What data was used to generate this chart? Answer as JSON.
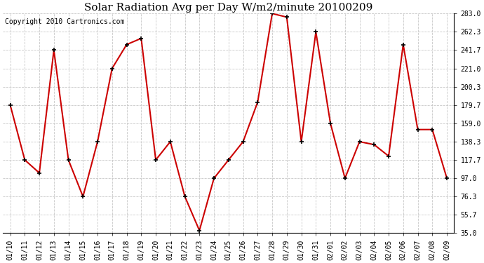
{
  "title": "Solar Radiation Avg per Day W/m2/minute 20100209",
  "copyright": "Copyright 2010 Cartronics.com",
  "x_labels": [
    "01/10",
    "01/11",
    "01/12",
    "01/13",
    "01/14",
    "01/15",
    "01/16",
    "01/17",
    "01/18",
    "01/19",
    "01/20",
    "01/21",
    "01/22",
    "01/23",
    "01/24",
    "01/25",
    "01/26",
    "01/27",
    "01/28",
    "01/29",
    "01/30",
    "01/31",
    "02/01",
    "02/02",
    "02/03",
    "02/04",
    "02/05",
    "02/06",
    "02/07",
    "02/08",
    "02/09"
  ],
  "y_values": [
    179.7,
    117.7,
    103.0,
    241.7,
    117.7,
    76.3,
    138.3,
    221.0,
    248.0,
    255.0,
    117.7,
    138.3,
    76.3,
    38.0,
    97.0,
    117.7,
    138.3,
    183.0,
    283.0,
    279.0,
    138.3,
    262.3,
    159.0,
    97.0,
    138.3,
    135.0,
    122.0,
    248.0,
    152.0,
    152.0,
    97.0
  ],
  "ylim_min": 35.0,
  "ylim_max": 283.0,
  "yticks": [
    35.0,
    55.7,
    76.3,
    97.0,
    117.7,
    138.3,
    159.0,
    179.7,
    200.3,
    221.0,
    241.7,
    262.3,
    283.0
  ],
  "line_color": "#cc0000",
  "marker_color": "#000000",
  "bg_color": "#ffffff",
  "plot_bg_color": "#ffffff",
  "grid_color": "#c8c8c8",
  "title_fontsize": 11,
  "tick_fontsize": 7,
  "copyright_fontsize": 7
}
